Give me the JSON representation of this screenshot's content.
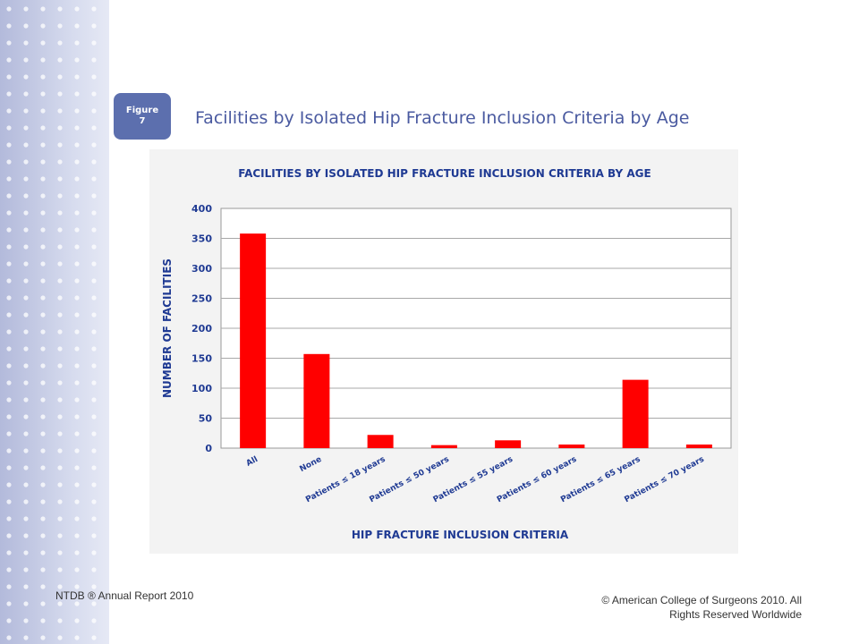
{
  "slide": {
    "figure_badge": {
      "line1": "Figure",
      "line2": "7"
    },
    "title": "Facilities by Isolated Hip Fracture Inclusion Criteria by Age",
    "footer_left": "NTDB ® Annual Report 2010",
    "footer_right_line1": "© American College of Surgeons 2010.  All",
    "footer_right_line2": "Rights Reserved Worldwide"
  },
  "colors": {
    "bar": "#ff0000",
    "axis_text": "#1f3a93",
    "title_text": "#4a5aa0",
    "badge": "#5c6fae"
  },
  "chart_data": {
    "type": "bar",
    "title": "FACILITIES BY ISOLATED HIP FRACTURE INCLUSION CRITERIA BY AGE",
    "xlabel": "HIP FRACTURE INCLUSION CRITERIA",
    "ylabel": "NUMBER OF FACILITIES",
    "categories": [
      "All",
      "None",
      "Patients ≤ 18 years",
      "Patients ≤ 50 years",
      "Patients ≤ 55 years",
      "Patients ≤ 60 years",
      "Patients ≤ 65 years",
      "Patients ≤ 70 years"
    ],
    "values": [
      358,
      157,
      22,
      5,
      13,
      6,
      114,
      6
    ],
    "ylim": [
      0,
      400
    ],
    "yticks": [
      0,
      50,
      100,
      150,
      200,
      250,
      300,
      350,
      400
    ],
    "grid": true,
    "legend": "none"
  }
}
